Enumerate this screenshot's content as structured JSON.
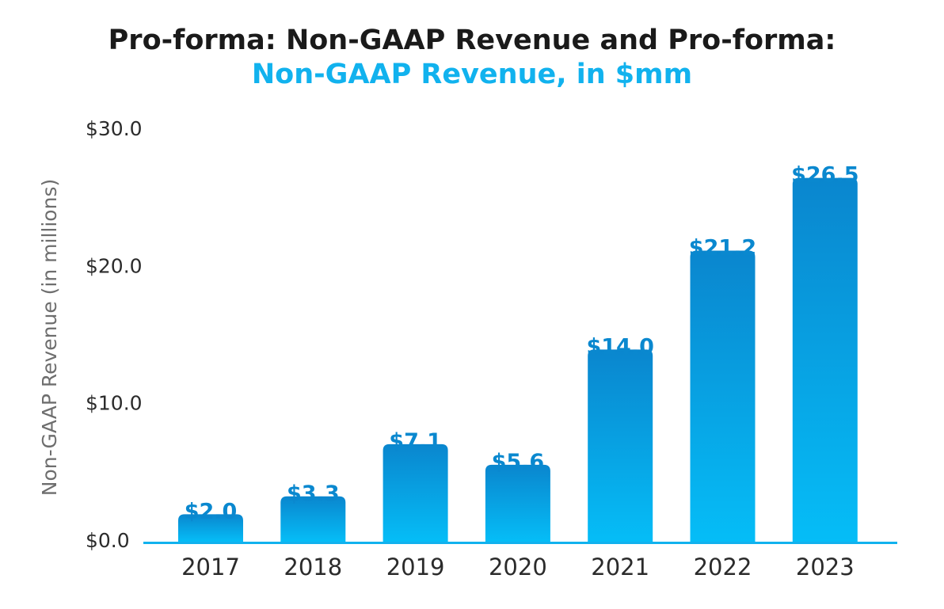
{
  "chart_data": {
    "type": "bar",
    "title_line1": "Pro-forma: Non-GAAP Revenue and Pro-forma:",
    "title_line2": "Non-GAAP Revenue, in $mm",
    "xlabel": "",
    "ylabel": "Non-GAAP Revenue (in millions)",
    "categories": [
      "2017",
      "2018",
      "2019",
      "2020",
      "2021",
      "2022",
      "2023"
    ],
    "values": [
      2.0,
      3.3,
      7.1,
      5.6,
      14.0,
      21.2,
      26.5
    ],
    "data_labels": [
      "$2.0",
      "$3.3",
      "$7.1",
      "$5.6",
      "$14.0",
      "$21.2",
      "$26.5"
    ],
    "yticks": [
      0,
      10,
      20,
      30
    ],
    "ytick_labels": [
      "$0.0",
      "$10.0",
      "$20.0",
      "$30.0"
    ],
    "ylim": [
      0,
      30
    ],
    "grid": false,
    "legend": "none",
    "colors": {
      "title": "#1a1a1a",
      "subtitle": "#11b2ee",
      "bar_top": "#0a86ce",
      "bar_bottom": "#05bdf7",
      "axis": "#11b2ee",
      "data_label": "#0a88cf"
    }
  }
}
